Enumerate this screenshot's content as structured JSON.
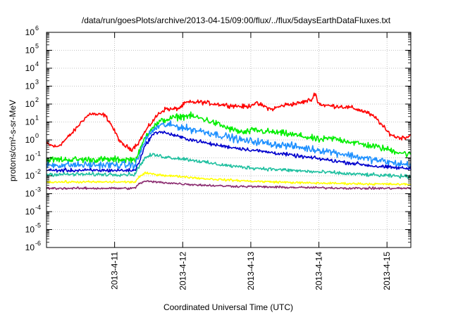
{
  "chart_data": {
    "type": "line",
    "title": "/data/run/goesPlots/archive/2013-04-15/09:00/flux/../flux/5daysEarthDataFluxes.txt",
    "xlabel": "Coordinated Universal Time (UTC)",
    "ylabel": "protons/cm²-s-sr-MeV",
    "yscale": "log",
    "ylim": [
      1e-06,
      1000000.0
    ],
    "xlim": [
      0,
      5.35
    ],
    "x_ticks": [
      {
        "x": 1,
        "label": "2013-4-11"
      },
      {
        "x": 2,
        "label": "2013-4-12"
      },
      {
        "x": 3,
        "label": "2013-4-13"
      },
      {
        "x": 4,
        "label": "2013-4-14"
      },
      {
        "x": 5,
        "label": "2013-4-15"
      }
    ],
    "y_ticks": [
      {
        "exp": -6,
        "label": "10",
        "sup": "-6"
      },
      {
        "exp": -5,
        "label": "10",
        "sup": "-5"
      },
      {
        "exp": -4,
        "label": "10",
        "sup": "-4"
      },
      {
        "exp": -3,
        "label": "10",
        "sup": "-3"
      },
      {
        "exp": -2,
        "label": "10",
        "sup": "-2"
      },
      {
        "exp": -1,
        "label": "10",
        "sup": "-1"
      },
      {
        "exp": 0,
        "label": "10",
        "sup": "0"
      },
      {
        "exp": 1,
        "label": "10",
        "sup": "1"
      },
      {
        "exp": 2,
        "label": "10",
        "sup": "2"
      },
      {
        "exp": 3,
        "label": "10",
        "sup": "3"
      },
      {
        "exp": 4,
        "label": "10",
        "sup": "4"
      },
      {
        "exp": 5,
        "label": "10",
        "sup": "5"
      },
      {
        "exp": 6,
        "label": "10",
        "sup": "6"
      }
    ],
    "grid": true,
    "series": [
      {
        "color": "#ff0000",
        "noise": 0.06,
        "x": [
          0,
          0.15,
          0.25,
          0.4,
          0.55,
          0.65,
          0.75,
          0.85,
          0.93,
          1.0,
          1.1,
          1.25,
          1.35,
          1.45,
          1.55,
          1.65,
          1.75,
          1.85,
          1.95,
          2.05,
          2.25,
          2.5,
          2.75,
          2.95,
          3.05,
          3.15,
          3.3,
          3.5,
          3.7,
          3.9,
          3.95,
          3.98,
          4.05,
          4.15,
          4.3,
          4.5,
          4.7,
          4.85,
          5.0,
          5.1,
          5.2,
          5.3,
          5.35
        ],
        "y": [
          0.6,
          0.4,
          0.8,
          3,
          15,
          30,
          25,
          25,
          10,
          3,
          0.6,
          0.3,
          0.7,
          3,
          10,
          30,
          55,
          50,
          60,
          120,
          130,
          100,
          80,
          70,
          110,
          90,
          50,
          90,
          110,
          180,
          500,
          120,
          90,
          80,
          75,
          60,
          35,
          15,
          3,
          1.6,
          1.3,
          1.5,
          2
        ]
      },
      {
        "color": "#00ee00",
        "noise": 0.09,
        "x": [
          0,
          1.3,
          1.35,
          1.45,
          1.55,
          1.7,
          1.8,
          1.95,
          2.1,
          2.3,
          2.5,
          2.7,
          2.9,
          3.05,
          3.2,
          3.4,
          3.6,
          3.8,
          4.0,
          4.2,
          4.4,
          4.6,
          4.8,
          5.0,
          5.2,
          5.35
        ],
        "y": [
          0.08,
          0.08,
          0.15,
          1.5,
          5,
          12,
          15,
          20,
          22,
          15,
          8,
          4,
          2.5,
          3.5,
          3,
          2.5,
          2,
          1.5,
          1,
          1.2,
          0.9,
          0.6,
          0.45,
          0.3,
          0.2,
          0.15
        ]
      },
      {
        "color": "#1e90ff",
        "noise": 0.1,
        "x": [
          0,
          1.3,
          1.35,
          1.45,
          1.55,
          1.65,
          1.75,
          1.9,
          2.1,
          2.3,
          2.5,
          2.7,
          2.9,
          3.1,
          3.3,
          3.5,
          3.7,
          3.9,
          4.1,
          4.3,
          4.5,
          4.7,
          4.9,
          5.1,
          5.35
        ],
        "y": [
          0.04,
          0.04,
          0.1,
          1,
          3,
          6,
          7,
          6,
          4,
          3,
          2,
          1.4,
          0.9,
          0.8,
          0.6,
          0.5,
          0.4,
          0.3,
          0.25,
          0.18,
          0.13,
          0.09,
          0.07,
          0.05,
          0.04
        ]
      },
      {
        "color": "#0000cd",
        "noise": 0.05,
        "x": [
          0,
          1.3,
          1.35,
          1.45,
          1.55,
          1.65,
          1.8,
          2.0,
          2.2,
          2.4,
          2.6,
          2.8,
          3.0,
          3.2,
          3.4,
          3.6,
          3.8,
          4.0,
          4.2,
          4.4,
          4.6,
          4.8,
          5.0,
          5.2,
          5.35
        ],
        "y": [
          0.02,
          0.02,
          0.05,
          0.5,
          1.8,
          3,
          2.2,
          1.3,
          0.9,
          0.6,
          0.45,
          0.35,
          0.28,
          0.22,
          0.18,
          0.14,
          0.11,
          0.09,
          0.07,
          0.055,
          0.045,
          0.035,
          0.03,
          0.027,
          0.025
        ]
      },
      {
        "color": "#20c0a0",
        "noise": 0.05,
        "x": [
          0,
          1.3,
          1.35,
          1.45,
          1.55,
          1.7,
          1.85,
          2.0,
          2.2,
          2.4,
          2.6,
          2.8,
          3.0,
          3.2,
          3.4,
          3.6,
          3.8,
          4.0,
          4.2,
          4.4,
          4.6,
          4.8,
          5.0,
          5.2,
          5.35
        ],
        "y": [
          0.012,
          0.012,
          0.03,
          0.1,
          0.15,
          0.12,
          0.1,
          0.09,
          0.07,
          0.05,
          0.04,
          0.032,
          0.028,
          0.025,
          0.022,
          0.02,
          0.018,
          0.016,
          0.015,
          0.013,
          0.012,
          0.011,
          0.01,
          0.0095,
          0.009
        ]
      },
      {
        "color": "#ffff00",
        "noise": 0.03,
        "x": [
          0,
          1.3,
          1.35,
          1.45,
          1.6,
          1.8,
          2.0,
          2.3,
          2.6,
          3.0,
          3.4,
          3.8,
          4.2,
          4.6,
          5.0,
          5.35
        ],
        "y": [
          0.0045,
          0.0045,
          0.008,
          0.014,
          0.012,
          0.01,
          0.009,
          0.007,
          0.006,
          0.005,
          0.0045,
          0.004,
          0.0038,
          0.0036,
          0.0034,
          0.0033
        ]
      },
      {
        "color": "#8b2c70",
        "noise": 0.03,
        "x": [
          0,
          1.3,
          1.35,
          1.45,
          1.6,
          1.8,
          2.0,
          2.3,
          2.6,
          3.0,
          3.4,
          3.8,
          4.2,
          4.6,
          5.0,
          5.35
        ],
        "y": [
          0.002,
          0.002,
          0.0035,
          0.005,
          0.0045,
          0.004,
          0.0035,
          0.003,
          0.0027,
          0.0025,
          0.0023,
          0.0022,
          0.0021,
          0.002,
          0.002,
          0.002
        ]
      }
    ]
  }
}
